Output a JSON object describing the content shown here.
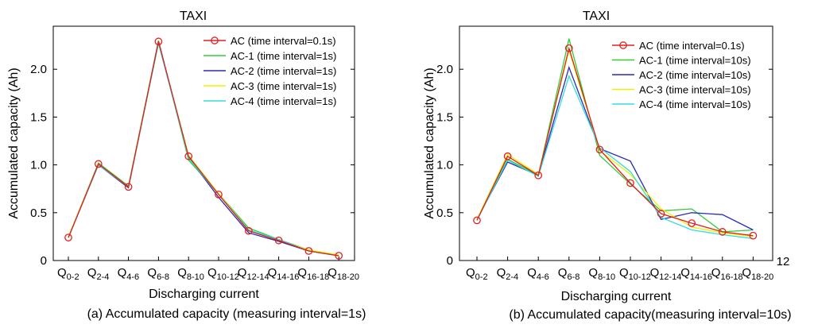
{
  "chart_data": [
    {
      "type": "line",
      "title": "TAXI",
      "caption": "(a) Accumulated capacity (measuring interval=1s)",
      "xlabel": "Discharging current",
      "ylabel": "Accumulated capacity (Ah)",
      "ylim": [
        0,
        2.45
      ],
      "yticks": [
        "0",
        "0.5",
        "1.0",
        "1.5",
        "2.0"
      ],
      "categories": [
        {
          "main": "Q",
          "sub": "0-2"
        },
        {
          "main": "Q",
          "sub": "2-4"
        },
        {
          "main": "Q",
          "sub": "4-6"
        },
        {
          "main": "Q",
          "sub": "6-8"
        },
        {
          "main": "Q",
          "sub": "8-10"
        },
        {
          "main": "Q",
          "sub": "10-12"
        },
        {
          "main": "Q",
          "sub": "12-14"
        },
        {
          "main": "Q",
          "sub": "14-16"
        },
        {
          "main": "Q",
          "sub": "16-18"
        },
        {
          "main": "Q",
          "sub": "18-20"
        }
      ],
      "series": [
        {
          "name": "AC (time interval=0.1s)",
          "color": "#e0201e",
          "marker": "circle",
          "values": [
            0.24,
            1.01,
            0.77,
            2.29,
            1.09,
            0.69,
            0.31,
            0.21,
            0.1,
            0.05
          ]
        },
        {
          "name": "AC-1 (time interval=1s)",
          "color": "#33cc33",
          "values": [
            0.24,
            1.02,
            0.78,
            2.3,
            1.05,
            0.7,
            0.34,
            0.22,
            0.11,
            0.05
          ]
        },
        {
          "name": "AC-2 (time interval=1s)",
          "color": "#2a2ab8",
          "values": [
            0.24,
            1.0,
            0.76,
            2.29,
            1.08,
            0.66,
            0.29,
            0.2,
            0.1,
            0.05
          ]
        },
        {
          "name": "AC-3 (time interval=1s)",
          "color": "#f0f000",
          "values": [
            0.25,
            1.01,
            0.77,
            2.28,
            1.1,
            0.7,
            0.32,
            0.21,
            0.11,
            0.06
          ]
        },
        {
          "name": "AC-4 (time interval=1s)",
          "color": "#33dddd",
          "values": [
            0.24,
            1.0,
            0.77,
            2.27,
            1.07,
            0.69,
            0.32,
            0.22,
            0.1,
            0.05
          ]
        }
      ]
    },
    {
      "type": "line",
      "title": "TAXI",
      "caption": "(b) Accumulated capacity(measuring interval=10s)",
      "xlabel": "Discharging current",
      "ylabel": "Accumulated capacity (Ah)",
      "ylim": [
        0,
        2.45
      ],
      "yticks": [
        "0",
        "0.5",
        "1.0",
        "1.5",
        "2.0"
      ],
      "extra_label": "12",
      "categories": [
        {
          "main": "Q",
          "sub": "0-2"
        },
        {
          "main": "Q",
          "sub": "2-4"
        },
        {
          "main": "Q",
          "sub": "4-6"
        },
        {
          "main": "Q",
          "sub": "6-8"
        },
        {
          "main": "Q",
          "sub": "8-10"
        },
        {
          "main": "Q",
          "sub": "10-12"
        },
        {
          "main": "Q",
          "sub": "12-14"
        },
        {
          "main": "Q",
          "sub": "14-16"
        },
        {
          "main": "Q",
          "sub": "16-18"
        },
        {
          "main": "Q",
          "sub": "18-20"
        }
      ],
      "series": [
        {
          "name": "AC (time interval=0.1s)",
          "color": "#e0201e",
          "marker": "circle",
          "values": [
            0.42,
            1.09,
            0.89,
            2.22,
            1.16,
            0.81,
            0.49,
            0.39,
            0.3,
            0.26
          ]
        },
        {
          "name": "AC-1 (time interval=10s)",
          "color": "#33cc33",
          "values": [
            0.43,
            1.06,
            0.89,
            2.32,
            1.1,
            0.8,
            0.52,
            0.54,
            0.3,
            0.32
          ]
        },
        {
          "name": "AC-2 (time interval=10s)",
          "color": "#2a2ab8",
          "values": [
            0.43,
            1.03,
            0.89,
            2.02,
            1.17,
            1.04,
            0.43,
            0.5,
            0.48,
            0.32
          ]
        },
        {
          "name": "AC-3 (time interval=10s)",
          "color": "#f0f000",
          "values": [
            0.43,
            1.11,
            0.9,
            2.2,
            1.15,
            0.9,
            0.54,
            0.35,
            0.29,
            0.25
          ]
        },
        {
          "name": "AC-4 (time interval=10s)",
          "color": "#33dddd",
          "values": [
            0.42,
            1.05,
            0.88,
            1.93,
            1.18,
            0.93,
            0.45,
            0.32,
            0.27,
            0.23
          ]
        }
      ]
    }
  ]
}
